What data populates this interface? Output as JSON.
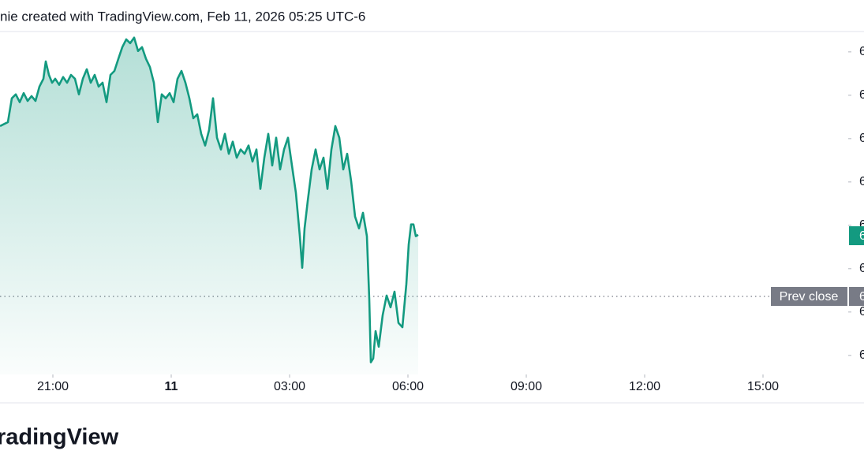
{
  "header": {
    "title": "nie created with TradingView.com, Feb 11, 2026 05:25 UTC-6"
  },
  "chart_data": {
    "type": "line",
    "color": "#139a80",
    "x": [
      19.66,
      19.86,
      19.96,
      20.06,
      20.16,
      20.26,
      20.36,
      20.46,
      20.56,
      20.66,
      20.76,
      20.82,
      20.9,
      20.98,
      21.06,
      21.16,
      21.26,
      21.36,
      21.46,
      21.56,
      21.66,
      21.76,
      21.86,
      21.96,
      22.06,
      22.16,
      22.26,
      22.36,
      22.46,
      22.56,
      22.66,
      22.76,
      22.86,
      22.96,
      23.06,
      23.16,
      23.26,
      23.36,
      23.46,
      23.56,
      23.66,
      23.76,
      23.86,
      23.96,
      24.06,
      24.16,
      24.26,
      24.36,
      24.46,
      24.56,
      24.66,
      24.76,
      24.86,
      24.96,
      25.06,
      25.16,
      25.26,
      25.36,
      25.46,
      25.56,
      25.66,
      25.76,
      25.86,
      25.96,
      26.06,
      26.16,
      26.26,
      26.36,
      26.46,
      26.56,
      26.66,
      26.76,
      26.86,
      26.96,
      27.06,
      27.16,
      27.26,
      27.32,
      27.38,
      27.46,
      27.56,
      27.66,
      27.76,
      27.86,
      27.96,
      28.06,
      28.16,
      28.26,
      28.36,
      28.46,
      28.56,
      28.66,
      28.76,
      28.86,
      28.96,
      29.02,
      29.06,
      29.12,
      29.18,
      29.26,
      29.36,
      29.46,
      29.56,
      29.66,
      29.76,
      29.86,
      29.96,
      30.02,
      30.08,
      30.14,
      30.2,
      30.26
    ],
    "values": [
      5.29,
      5.38,
      5.93,
      6.02,
      5.84,
      6.05,
      5.87,
      5.98,
      5.87,
      6.2,
      6.38,
      6.78,
      6.47,
      6.29,
      6.38,
      6.24,
      6.42,
      6.29,
      6.47,
      6.38,
      6.02,
      6.38,
      6.6,
      6.29,
      6.47,
      6.2,
      6.29,
      5.84,
      6.47,
      6.56,
      6.84,
      7.11,
      7.29,
      7.2,
      7.33,
      7.02,
      7.11,
      6.84,
      6.65,
      6.29,
      5.38,
      6.02,
      5.93,
      6.05,
      5.84,
      6.38,
      6.56,
      6.29,
      5.93,
      5.47,
      5.56,
      5.11,
      4.84,
      5.2,
      5.93,
      5.02,
      4.75,
      5.11,
      4.65,
      4.93,
      4.56,
      4.75,
      4.65,
      4.84,
      4.47,
      4.75,
      3.84,
      4.56,
      5.11,
      4.38,
      5.02,
      4.29,
      4.75,
      5.02,
      4.38,
      3.75,
      2.75,
      2.02,
      2.93,
      3.56,
      4.29,
      4.75,
      4.29,
      4.56,
      3.84,
      4.75,
      5.29,
      5.02,
      4.29,
      4.65,
      4.02,
      3.2,
      2.93,
      3.29,
      2.75,
      1.29,
      -0.16,
      -0.07,
      0.56,
      0.2,
      0.93,
      1.38,
      1.11,
      1.47,
      0.75,
      0.65,
      1.65,
      2.56,
      3.02,
      3.02,
      2.75,
      2.78
    ],
    "xlim": [
      19.66,
      41.16
    ],
    "xticks": [
      {
        "value": 21,
        "label": "21:00"
      },
      {
        "value": 24,
        "label": "11"
      },
      {
        "value": 27,
        "label": "03:00"
      },
      {
        "value": 30,
        "label": "06:00"
      },
      {
        "value": 33,
        "label": "09:00"
      },
      {
        "value": 36,
        "label": "12:00"
      },
      {
        "value": 39,
        "label": "15:00"
      }
    ],
    "ylim": [
      -0.44,
      7.47
    ],
    "yticks": [
      {
        "value": 0,
        "label": "6"
      },
      {
        "value": 1,
        "label": "6"
      },
      {
        "value": 2,
        "label": "6"
      },
      {
        "value": 3,
        "label": "6"
      },
      {
        "value": 4,
        "label": "6"
      },
      {
        "value": 5,
        "label": "6"
      },
      {
        "value": 6,
        "label": "6"
      },
      {
        "value": 7,
        "label": "6"
      }
    ],
    "prev_close": {
      "name": "Prev close",
      "value": 1.36,
      "label": "6"
    },
    "last_price": {
      "value": 2.76,
      "label": "6"
    }
  },
  "footer": {
    "logo": "radingView"
  }
}
